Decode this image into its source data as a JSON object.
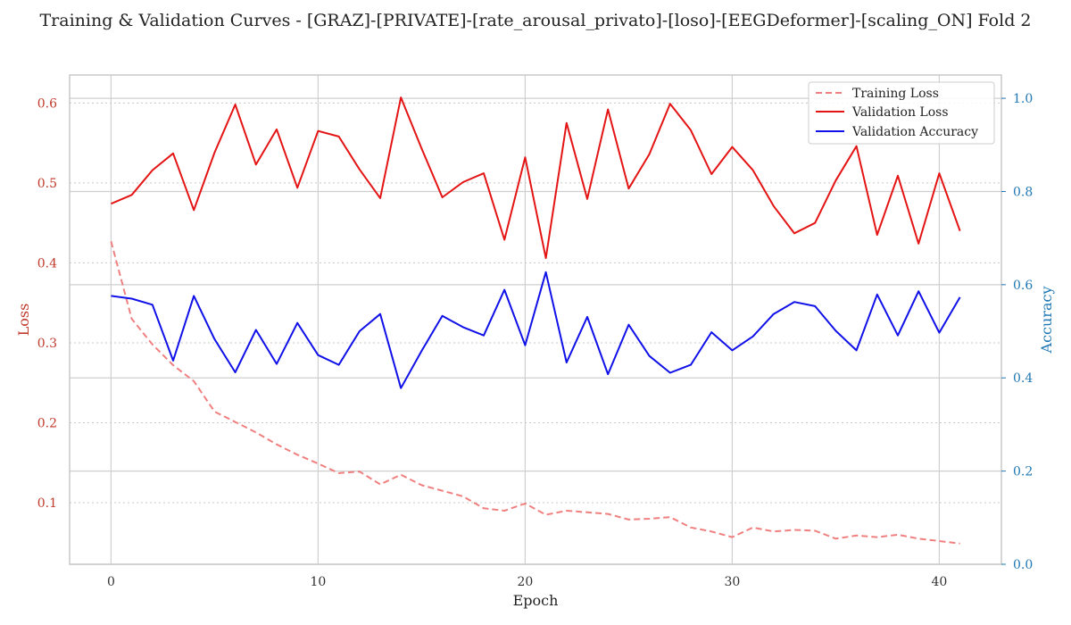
{
  "chart_data": {
    "type": "line",
    "title": "Training & Validation Curves - [GRAZ]-[PRIVATE]-[rate_arousal_privato]-[loso]-[EEGDeformer]-[scaling_ON] Fold 2",
    "xlabel": "Epoch",
    "ylabel_left": "Loss",
    "ylabel_right": "Accuracy",
    "xlim": [
      -2,
      43
    ],
    "ylim_left": [
      0.023,
      0.635
    ],
    "ylim_right": [
      0.0,
      1.05
    ],
    "x_ticks": [
      0,
      10,
      20,
      30,
      40
    ],
    "y_left_ticks": [
      0.1,
      0.2,
      0.3,
      0.4,
      0.5,
      0.6
    ],
    "y_right_ticks": [
      0.0,
      0.2,
      0.4,
      0.6,
      0.8,
      1.0
    ],
    "grid": true,
    "legend_position": "top-right",
    "colors": {
      "training_loss": "#f08080",
      "validation_loss": "#e41414",
      "validation_accuracy": "#1010e8",
      "left_axis": "#c0392b",
      "right_axis": "#1f77b4"
    },
    "x": [
      0,
      1,
      2,
      3,
      4,
      5,
      6,
      7,
      8,
      9,
      10,
      11,
      12,
      13,
      14,
      15,
      16,
      17,
      18,
      19,
      20,
      21,
      22,
      23,
      24,
      25,
      26,
      27,
      28,
      29,
      30,
      31,
      32,
      33,
      34,
      35,
      36,
      37,
      38,
      39,
      40,
      41
    ],
    "series": [
      {
        "name": "Training Loss",
        "axis": "left",
        "style": "dashed",
        "values": [
          0.427,
          0.33,
          0.298,
          0.272,
          0.252,
          0.214,
          0.201,
          0.188,
          0.173,
          0.16,
          0.149,
          0.137,
          0.139,
          0.123,
          0.135,
          0.122,
          0.115,
          0.108,
          0.093,
          0.09,
          0.099,
          0.085,
          0.09,
          0.088,
          0.086,
          0.079,
          0.08,
          0.082,
          0.069,
          0.064,
          0.057,
          0.069,
          0.064,
          0.066,
          0.065,
          0.055,
          0.059,
          0.057,
          0.06,
          0.055,
          0.052,
          0.049
        ]
      },
      {
        "name": "Validation Loss",
        "axis": "left",
        "style": "solid",
        "values": [
          0.474,
          0.485,
          0.516,
          0.537,
          0.466,
          0.538,
          0.598,
          0.523,
          0.567,
          0.494,
          0.565,
          0.558,
          0.517,
          0.481,
          0.607,
          0.543,
          0.482,
          0.501,
          0.512,
          0.429,
          0.532,
          0.406,
          0.575,
          0.48,
          0.592,
          0.493,
          0.536,
          0.599,
          0.566,
          0.511,
          0.545,
          0.516,
          0.471,
          0.437,
          0.45,
          0.503,
          0.546,
          0.435,
          0.509,
          0.424,
          0.512,
          0.44
        ]
      },
      {
        "name": "Validation Accuracy",
        "axis": "right",
        "style": "solid",
        "values": [
          0.576,
          0.57,
          0.557,
          0.437,
          0.576,
          0.483,
          0.412,
          0.503,
          0.43,
          0.518,
          0.449,
          0.428,
          0.5,
          0.537,
          0.378,
          0.458,
          0.533,
          0.509,
          0.491,
          0.589,
          0.47,
          0.627,
          0.433,
          0.531,
          0.408,
          0.514,
          0.447,
          0.411,
          0.428,
          0.498,
          0.459,
          0.489,
          0.537,
          0.563,
          0.554,
          0.501,
          0.459,
          0.579,
          0.491,
          0.586,
          0.497,
          0.573
        ]
      }
    ]
  }
}
